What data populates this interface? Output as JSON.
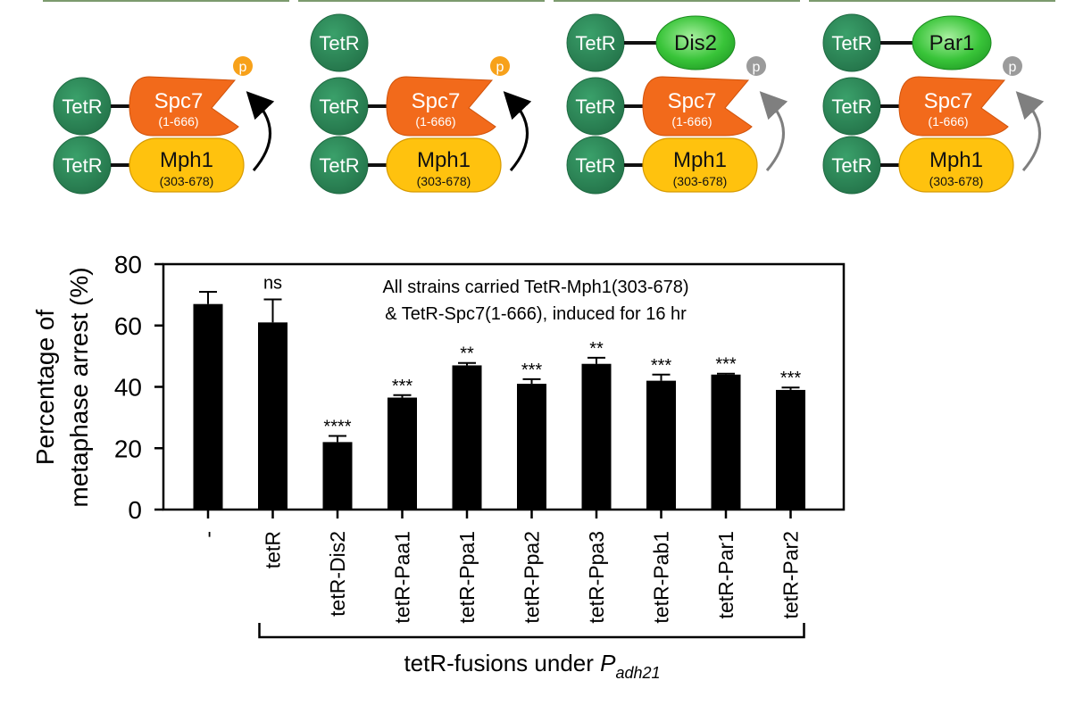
{
  "panels": [
    {
      "top": null,
      "spc7": {
        "name": "Spc7",
        "range": "(1-666)"
      },
      "mph1": {
        "name": "Mph1",
        "range": "(303-678)"
      },
      "tetr": "TetR",
      "p_label": "p",
      "p_color": "#f7a11a",
      "arrow_color": "#000000"
    },
    {
      "top": {
        "type": "tetr_only",
        "label": "TetR"
      },
      "spc7": {
        "name": "Spc7",
        "range": "(1-666)"
      },
      "mph1": {
        "name": "Mph1",
        "range": "(303-678)"
      },
      "tetr": "TetR",
      "p_label": "p",
      "p_color": "#f7a11a",
      "arrow_color": "#000000"
    },
    {
      "top": {
        "type": "fusion",
        "label": "TetR",
        "fusion": "Dis2"
      },
      "spc7": {
        "name": "Spc7",
        "range": "(1-666)"
      },
      "mph1": {
        "name": "Mph1",
        "range": "(303-678)"
      },
      "tetr": "TetR",
      "p_label": "p",
      "p_color": "#9b9b9b",
      "arrow_color": "#7f7f7f"
    },
    {
      "top": {
        "type": "fusion",
        "label": "TetR",
        "fusion": "Par1"
      },
      "spc7": {
        "name": "Spc7",
        "range": "(1-666)"
      },
      "mph1": {
        "name": "Mph1",
        "range": "(303-678)"
      },
      "tetr": "TetR",
      "p_label": "p",
      "p_color": "#9b9b9b",
      "arrow_color": "#7f7f7f"
    }
  ],
  "chart_data": {
    "type": "bar",
    "categories": [
      "-",
      "tetR",
      "tetR-Dis2",
      "tetR-Paa1",
      "tetR-Ppa1",
      "tetR-Ppa2",
      "tetR-Ppa3",
      "tetR-Pab1",
      "tetR-Par1",
      "tetR-Par2"
    ],
    "values": [
      67,
      61,
      22,
      36.5,
      47,
      41,
      47.5,
      42,
      44,
      39
    ],
    "errors": [
      4,
      7.5,
      2,
      0.8,
      0.8,
      1.5,
      2,
      2,
      0.3,
      0.8
    ],
    "significance": [
      "",
      "ns",
      "****",
      "***",
      "**",
      "***",
      "**",
      "***",
      "***",
      "***"
    ],
    "ylabel_line1": "Percentage of",
    "ylabel_line2": "metaphase arrest (%)",
    "ylim": [
      0,
      80
    ],
    "yticks": [
      0,
      20,
      40,
      60,
      80
    ],
    "annotation_line1": "All strains carried TetR-Mph1(303-678)",
    "annotation_line2": "& TetR-Spc7(1-666), induced for 16 hr",
    "bracket_label_main": "tetR-fusions under ",
    "bracket_label_italic": "P",
    "bracket_label_sub": "adh21",
    "bar_color": "#000000"
  },
  "colors": {
    "tetr_green": "#2e8b57",
    "fusion_green": "#3cc43c",
    "spc7_orange": "#f26a1b",
    "mph1_yellow": "#ffc20e"
  }
}
